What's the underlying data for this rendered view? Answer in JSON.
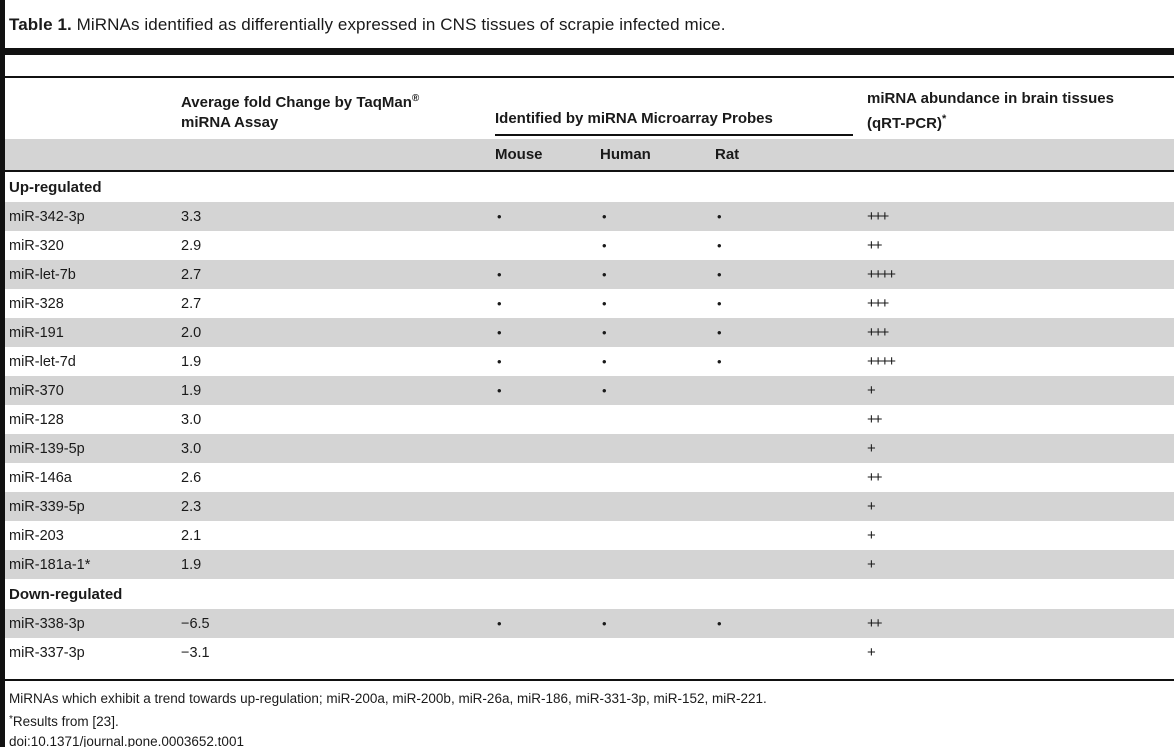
{
  "title": {
    "label": "Table 1.",
    "text": " MiRNAs identified as differentially expressed in CNS tissues of scrapie infected mice."
  },
  "table": {
    "headers": {
      "fold_line1": "Average fold Change by TaqMan",
      "fold_sup": "®",
      "fold_line2": "miRNA Assay",
      "microarray_group": "Identified by miRNA Microarray Probes",
      "species": [
        "Mouse",
        "Human",
        "Rat"
      ],
      "abundance_line1": "miRNA abundance in brain tissues",
      "abundance_line2": "(qRT-PCR)",
      "abundance_sup": "*"
    },
    "dot_glyph": "•",
    "rows": [
      {
        "type": "section",
        "label": "Up-regulated",
        "shaded": false
      },
      {
        "type": "data",
        "name": "miR-342-3p",
        "fold": "3.3",
        "mouse": true,
        "human": true,
        "rat": true,
        "abundance": "+++",
        "shaded": true
      },
      {
        "type": "data",
        "name": "miR-320",
        "fold": "2.9",
        "mouse": false,
        "human": true,
        "rat": true,
        "abundance": "++",
        "shaded": false
      },
      {
        "type": "data",
        "name": "miR-let-7b",
        "fold": "2.7",
        "mouse": true,
        "human": true,
        "rat": true,
        "abundance": "++++",
        "shaded": true
      },
      {
        "type": "data",
        "name": "miR-328",
        "fold": "2.7",
        "mouse": true,
        "human": true,
        "rat": true,
        "abundance": "+++",
        "shaded": false
      },
      {
        "type": "data",
        "name": "miR-191",
        "fold": "2.0",
        "mouse": true,
        "human": true,
        "rat": true,
        "abundance": "+++",
        "shaded": true
      },
      {
        "type": "data",
        "name": "miR-let-7d",
        "fold": "1.9",
        "mouse": true,
        "human": true,
        "rat": true,
        "abundance": "++++",
        "shaded": false
      },
      {
        "type": "data",
        "name": "miR-370",
        "fold": "1.9",
        "mouse": true,
        "human": true,
        "rat": false,
        "abundance": "+",
        "shaded": true
      },
      {
        "type": "data",
        "name": "miR-128",
        "fold": "3.0",
        "mouse": false,
        "human": false,
        "rat": false,
        "abundance": "++",
        "shaded": false
      },
      {
        "type": "data",
        "name": "miR-139-5p",
        "fold": "3.0",
        "mouse": false,
        "human": false,
        "rat": false,
        "abundance": "+",
        "shaded": true
      },
      {
        "type": "data",
        "name": "miR-146a",
        "fold": "2.6",
        "mouse": false,
        "human": false,
        "rat": false,
        "abundance": "++",
        "shaded": false
      },
      {
        "type": "data",
        "name": "miR-339-5p",
        "fold": "2.3",
        "mouse": false,
        "human": false,
        "rat": false,
        "abundance": "+",
        "shaded": true
      },
      {
        "type": "data",
        "name": "miR-203",
        "fold": "2.1",
        "mouse": false,
        "human": false,
        "rat": false,
        "abundance": "+",
        "shaded": false
      },
      {
        "type": "data",
        "name": "miR-181a-1*",
        "fold": "1.9",
        "mouse": false,
        "human": false,
        "rat": false,
        "abundance": "+",
        "shaded": true
      },
      {
        "type": "section",
        "label": "Down-regulated",
        "shaded": false
      },
      {
        "type": "data",
        "name": "miR-338-3p",
        "fold": "−6.5",
        "mouse": true,
        "human": true,
        "rat": true,
        "abundance": "++",
        "shaded": true
      },
      {
        "type": "data",
        "name": "miR-337-3p",
        "fold": "−3.1",
        "mouse": false,
        "human": false,
        "rat": false,
        "abundance": "+",
        "shaded": false
      }
    ]
  },
  "footer": {
    "note": "MiRNAs which exhibit a trend towards up-regulation; miR-200a, miR-200b, miR-26a, miR-186, miR-331-3p, miR-152, miR-221.",
    "results_sup": "*",
    "results_text": "Results from [23].",
    "doi": "doi:10.1371/journal.pone.0003652.t001"
  },
  "colors": {
    "row_shade": "#d4d4d4",
    "rule": "#111111",
    "text": "#1a1a1a"
  }
}
